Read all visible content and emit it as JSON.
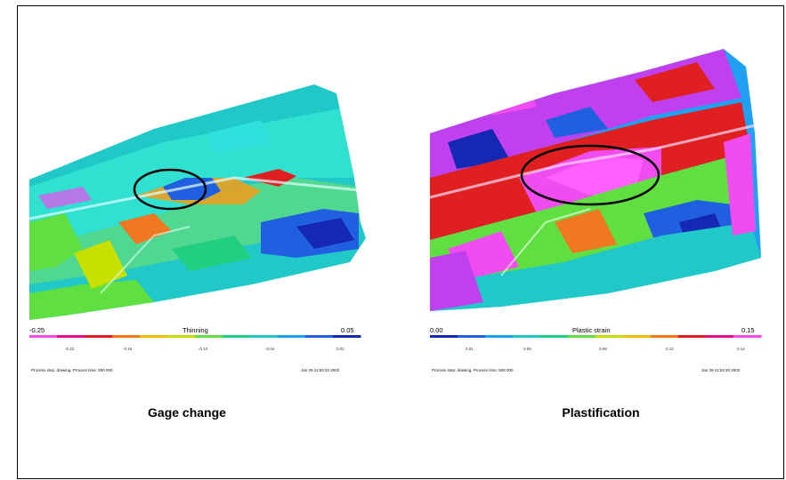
{
  "left_panel": {
    "scale_title": "Thinning",
    "scale_min": "-0.25",
    "scale_max": "0.05",
    "tick_labels": [
      "-0.22",
      "-0.16",
      "-0.10",
      "-0.04",
      "0.02"
    ],
    "footer_left": "Process step: drawing,  Process time: 500 000",
    "footer_right": "Jan 29 11:50:22 2002",
    "caption": "Gage change",
    "colors": [
      "#f04cf0",
      "#e60b8c",
      "#e02020",
      "#f07820",
      "#f0c000",
      "#c8e000",
      "#60e040",
      "#20d080",
      "#20c8c8",
      "#20a0f0",
      "#2060e0",
      "#1428b4"
    ]
  },
  "right_panel": {
    "scale_title": "Plastic strain",
    "scale_min": "0.00",
    "scale_max": "0.15",
    "tick_labels": [
      "0.01",
      "0.05",
      "0.08",
      "0.12",
      "0.14"
    ],
    "footer_left": "Process step: drawing,  Process time: 500 000",
    "footer_right": "Jan 29 11:53:30 2002",
    "caption": "Plastification",
    "colors": [
      "#1428b4",
      "#2060e0",
      "#20a0f0",
      "#20c8c8",
      "#20d080",
      "#60e040",
      "#c8e000",
      "#f0c000",
      "#f07820",
      "#e02020",
      "#e60b8c",
      "#f04cf0"
    ]
  }
}
